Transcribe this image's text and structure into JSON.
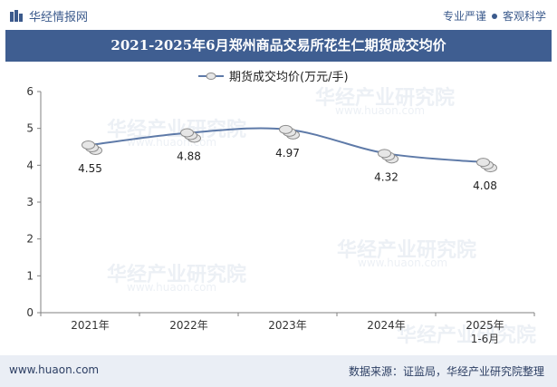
{
  "header": {
    "brand_name": "华经情报网",
    "slogan_left": "专业严谨",
    "slogan_right": "客观科学"
  },
  "chart_data": {
    "type": "line",
    "title": "2021-2025年6月郑州商品交易所花生仁期货成交均价",
    "categories": [
      "2021年",
      "2022年",
      "2023年",
      "2024年",
      "2025年\n1-6月"
    ],
    "series": [
      {
        "name": "期货成交均价(万元/手)",
        "values": [
          4.55,
          4.88,
          4.97,
          4.32,
          4.08
        ]
      }
    ],
    "data_labels": [
      "4.55",
      "4.88",
      "4.97",
      "4.32",
      "4.08"
    ],
    "yticks": [
      "0",
      "1",
      "2",
      "3",
      "4",
      "5",
      "6"
    ],
    "ylim": [
      0,
      6
    ],
    "xlabel": "",
    "ylabel": "",
    "legend": "top-center",
    "colors": {
      "line": "#5e7aa8",
      "axis": "#808080",
      "title_bg": "#3f5e91",
      "footer_bg": "#eaeef5"
    }
  },
  "watermark": {
    "text": "华经产业研究院",
    "sub": "www.huaon.com"
  },
  "footer": {
    "site": "www.huaon.com",
    "source": "数据来源：证监局，华经产业研究院整理"
  }
}
